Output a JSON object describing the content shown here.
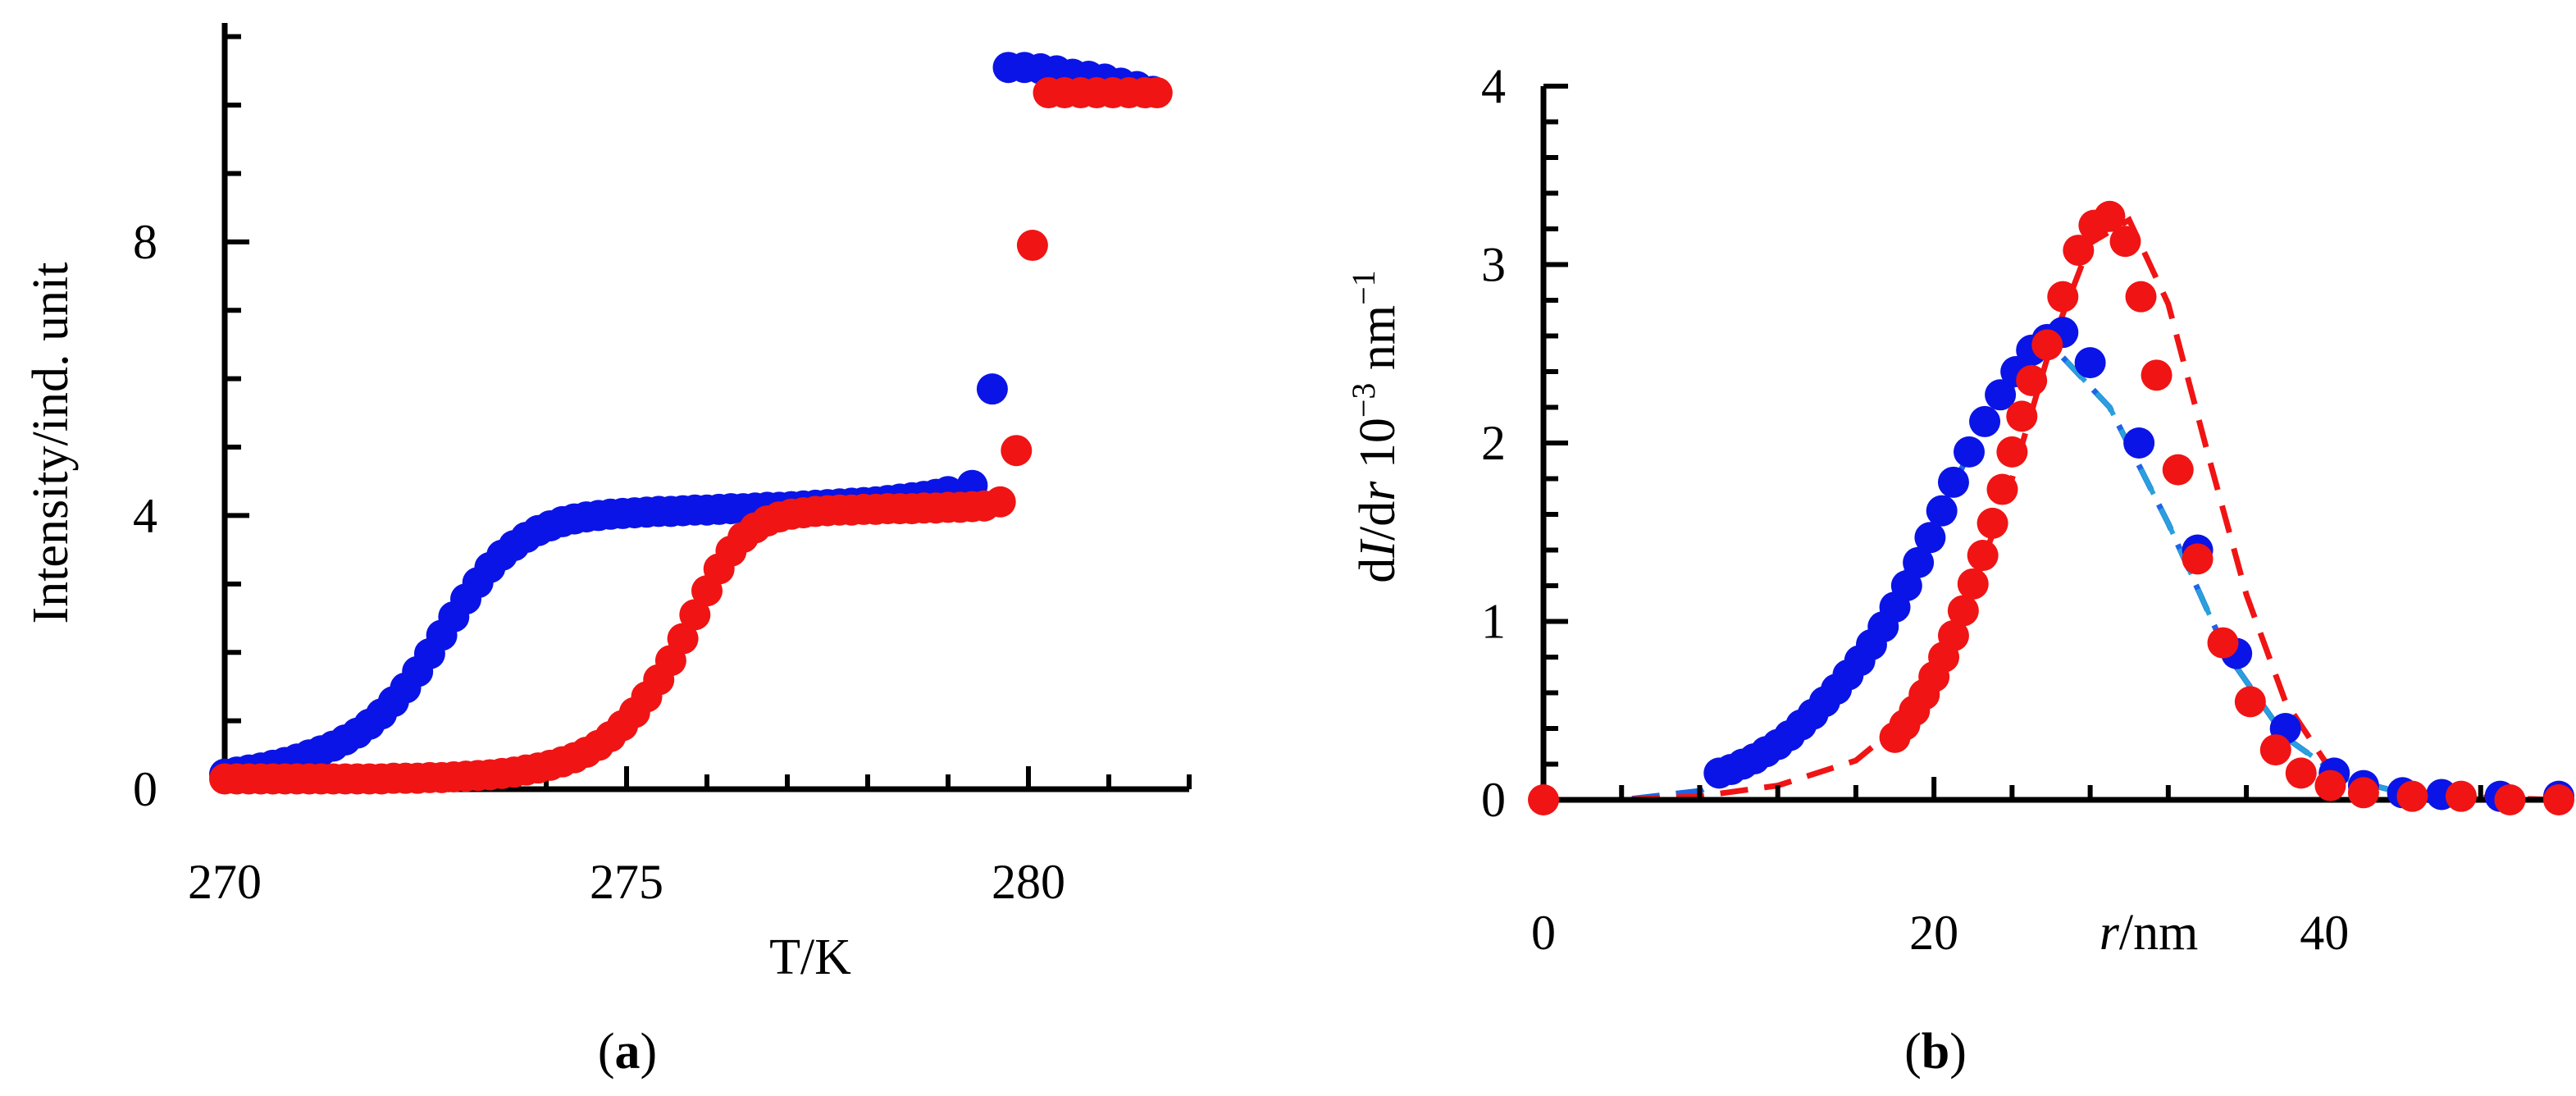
{
  "panels": {
    "a": {
      "open": "(",
      "letter": "a",
      "close": ")"
    },
    "b": {
      "open": "(",
      "letter": "b",
      "close": ")"
    }
  },
  "colors": {
    "blue": "#0a14e6",
    "red": "#f01414",
    "blue_fit": "#1e64e6",
    "cyan_fit": "#28a0dc",
    "red_fit": "#f01414"
  },
  "chart_data": [
    {
      "type": "scatter",
      "title": "",
      "xlabel": "T/K",
      "ylabel": "Intensity/ind. unit",
      "xlim": [
        270,
        282
      ],
      "ylim": [
        0,
        11.2
      ],
      "xticks": [
        "270",
        "275",
        "280"
      ],
      "yticks": [
        "0",
        "4",
        "8"
      ],
      "series": [
        {
          "color": "blue",
          "x": [
            270.0,
            270.15,
            270.3,
            270.45,
            270.6,
            270.75,
            270.9,
            271.05,
            271.2,
            271.35,
            271.5,
            271.65,
            271.8,
            271.95,
            272.1,
            272.25,
            272.4,
            272.55,
            272.7,
            272.85,
            273.0,
            273.15,
            273.3,
            273.45,
            273.6,
            273.75,
            273.9,
            274.05,
            274.2,
            274.35,
            274.5,
            274.65,
            274.8,
            274.95,
            275.1,
            275.25,
            275.4,
            275.55,
            275.7,
            275.85,
            276.0,
            276.15,
            276.3,
            276.45,
            276.6,
            276.75,
            276.9,
            277.05,
            277.2,
            277.35,
            277.5,
            277.65,
            277.8,
            277.95,
            278.1,
            278.25,
            278.4,
            278.55,
            278.7,
            278.85,
            279.0,
            279.3,
            279.55,
            279.75,
            279.95,
            280.15,
            280.35,
            280.55,
            280.75,
            280.95,
            281.15,
            281.35,
            281.55
          ],
          "y": [
            0.22,
            0.25,
            0.28,
            0.31,
            0.35,
            0.39,
            0.44,
            0.5,
            0.56,
            0.63,
            0.72,
            0.82,
            0.95,
            1.1,
            1.28,
            1.48,
            1.72,
            1.98,
            2.25,
            2.52,
            2.78,
            3.02,
            3.24,
            3.42,
            3.56,
            3.68,
            3.78,
            3.85,
            3.91,
            3.95,
            3.98,
            4.0,
            4.02,
            4.03,
            4.04,
            4.05,
            4.06,
            4.06,
            4.07,
            4.08,
            4.08,
            4.09,
            4.1,
            4.1,
            4.11,
            4.12,
            4.12,
            4.13,
            4.14,
            4.15,
            4.16,
            4.17,
            4.18,
            4.19,
            4.2,
            4.22,
            4.24,
            4.26,
            4.28,
            4.31,
            4.35,
            4.44,
            5.85,
            10.55,
            10.55,
            10.53,
            10.5,
            10.45,
            10.42,
            10.38,
            10.32,
            10.27,
            10.2
          ]
        },
        {
          "color": "red",
          "x": [
            270.0,
            270.15,
            270.3,
            270.45,
            270.6,
            270.75,
            270.9,
            271.05,
            271.2,
            271.35,
            271.5,
            271.65,
            271.8,
            271.95,
            272.1,
            272.25,
            272.4,
            272.55,
            272.7,
            272.85,
            273.0,
            273.15,
            273.3,
            273.45,
            273.6,
            273.75,
            273.9,
            274.05,
            274.2,
            274.35,
            274.5,
            274.65,
            274.8,
            274.95,
            275.1,
            275.25,
            275.4,
            275.55,
            275.7,
            275.85,
            276.0,
            276.15,
            276.3,
            276.45,
            276.6,
            276.75,
            276.9,
            277.05,
            277.2,
            277.35,
            277.5,
            277.65,
            277.8,
            277.95,
            278.1,
            278.25,
            278.4,
            278.55,
            278.7,
            278.85,
            279.0,
            279.15,
            279.3,
            279.45,
            279.65,
            279.85,
            280.05,
            280.25,
            280.45,
            280.65,
            280.85,
            281.05,
            281.25,
            281.45,
            281.6
          ],
          "y": [
            0.15,
            0.15,
            0.15,
            0.15,
            0.15,
            0.15,
            0.15,
            0.15,
            0.15,
            0.15,
            0.15,
            0.15,
            0.15,
            0.15,
            0.16,
            0.16,
            0.16,
            0.17,
            0.17,
            0.18,
            0.19,
            0.2,
            0.21,
            0.23,
            0.25,
            0.28,
            0.31,
            0.35,
            0.4,
            0.46,
            0.54,
            0.64,
            0.77,
            0.93,
            1.12,
            1.35,
            1.6,
            1.88,
            2.2,
            2.55,
            2.9,
            3.22,
            3.48,
            3.68,
            3.82,
            3.92,
            3.98,
            4.02,
            4.04,
            4.06,
            4.07,
            4.08,
            4.08,
            4.09,
            4.09,
            4.1,
            4.1,
            4.1,
            4.11,
            4.11,
            4.12,
            4.12,
            4.13,
            4.14,
            4.2,
            4.95,
            7.95,
            10.18,
            10.18,
            10.18,
            10.18,
            10.18,
            10.18,
            10.18,
            10.18
          ]
        }
      ]
    },
    {
      "type": "scatter",
      "title": "",
      "xlabel": "r/nm",
      "ylabel": "dI/dr 10⁻³ nm⁻¹",
      "xlim": [
        0,
        52
      ],
      "ylim": [
        0,
        4
      ],
      "xticks": [
        "0",
        "20",
        "40"
      ],
      "yticks": [
        "0",
        "1",
        "2",
        "3",
        "4"
      ],
      "series": [
        {
          "color": "blue",
          "x": [
            9.0,
            9.6,
            10.2,
            10.8,
            11.4,
            12.0,
            12.6,
            13.2,
            13.8,
            14.4,
            15.0,
            15.6,
            16.2,
            16.8,
            17.4,
            18.0,
            18.6,
            19.2,
            19.8,
            20.4,
            21.0,
            21.8,
            22.6,
            23.4,
            24.2,
            25.0,
            25.8,
            26.6,
            28.0,
            30.5,
            33.5,
            35.5,
            38.0,
            40.5,
            42.0,
            44.0,
            46.0,
            49.0,
            52.0
          ],
          "y": [
            0.15,
            0.17,
            0.2,
            0.23,
            0.27,
            0.31,
            0.36,
            0.42,
            0.48,
            0.55,
            0.62,
            0.7,
            0.78,
            0.87,
            0.97,
            1.08,
            1.2,
            1.33,
            1.47,
            1.62,
            1.78,
            1.95,
            2.12,
            2.27,
            2.4,
            2.52,
            2.58,
            2.62,
            2.45,
            2.0,
            1.4,
            0.82,
            0.4,
            0.15,
            0.08,
            0.04,
            0.03,
            0.02,
            0.02
          ]
        },
        {
          "color": "red",
          "x": [
            0.0,
            18.0,
            18.5,
            19.0,
            19.5,
            20.0,
            20.5,
            21.0,
            21.5,
            22.0,
            22.5,
            23.0,
            23.5,
            24.0,
            24.5,
            25.0,
            25.8,
            26.6,
            27.4,
            28.2,
            29.0,
            29.8,
            30.6,
            31.4,
            32.5,
            33.5,
            34.8,
            36.2,
            37.5,
            38.8,
            40.3,
            42.0,
            44.5,
            47.0,
            49.5,
            52.0
          ],
          "y": [
            0.0,
            0.35,
            0.42,
            0.5,
            0.59,
            0.69,
            0.8,
            0.92,
            1.06,
            1.21,
            1.37,
            1.55,
            1.74,
            1.95,
            2.15,
            2.35,
            2.55,
            2.82,
            3.08,
            3.22,
            3.27,
            3.13,
            2.82,
            2.38,
            1.85,
            1.35,
            0.88,
            0.55,
            0.28,
            0.15,
            0.08,
            0.04,
            0.02,
            0.02,
            0.0,
            0.0
          ]
        },
        {
          "color": "blue_fit",
          "kind": "fit",
          "x": [
            0,
            4,
            8,
            11,
            14,
            17,
            20,
            23,
            26,
            29,
            32,
            35,
            38,
            41,
            44,
            47,
            50,
            52
          ],
          "y": [
            0,
            0,
            0.05,
            0.22,
            0.52,
            0.98,
            1.55,
            2.2,
            2.55,
            2.2,
            1.55,
            0.82,
            0.35,
            0.12,
            0.04,
            0.01,
            0,
            0
          ]
        },
        {
          "color": "red_fit",
          "kind": "fit",
          "x": [
            0,
            4,
            8,
            12,
            16,
            18,
            20,
            22,
            24,
            26,
            28,
            30,
            32,
            34,
            36,
            38,
            40,
            43,
            46,
            52
          ],
          "y": [
            0,
            0,
            0.02,
            0.08,
            0.22,
            0.4,
            0.72,
            1.18,
            1.8,
            2.55,
            3.12,
            3.25,
            2.78,
            1.95,
            1.15,
            0.55,
            0.22,
            0.06,
            0.02,
            0
          ]
        }
      ]
    }
  ]
}
